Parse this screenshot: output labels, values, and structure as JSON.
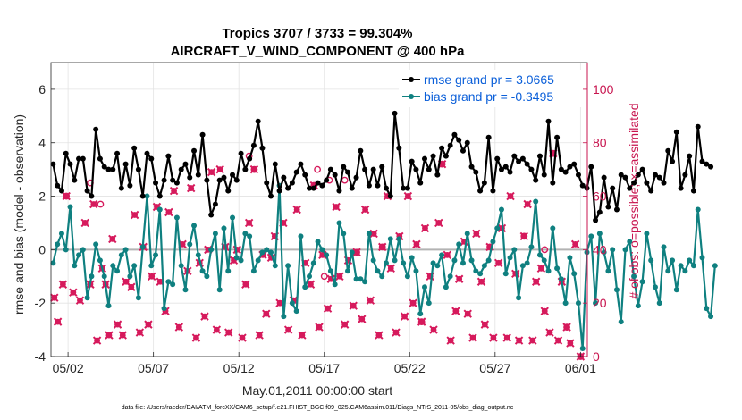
{
  "chart_data": {
    "type": "line",
    "title": "Tropics 3707 / 3733 = 99.304%",
    "subtitle": "AIRCRAFT_V_WIND_COMPONENT @ 400 hPa",
    "xlabel": "May.01,2011 00:00:00 start",
    "ylabel_left": "rmse and bias (model - observation)",
    "ylabel_right": "# of obs: o=possible; ×=assimilated",
    "footer": "data file: /Users/raeder/DAI/ATM_forcXX/CAM6_setup/f.e21.FHIST_BGC.f09_025.CAM6assim.011/Diags_NTrS_2011-05/obs_diag_output.nc",
    "xlim": [
      1,
      32.4
    ],
    "ylim_left": [
      -4,
      7
    ],
    "ylim_right": [
      0,
      110
    ],
    "y_ticks_left": [
      -4,
      -2,
      0,
      2,
      4,
      6
    ],
    "y_ticks_right": [
      0,
      20,
      40,
      60,
      80,
      100
    ],
    "x_ticks": [
      {
        "pos": 2,
        "label": "05/02"
      },
      {
        "pos": 7,
        "label": "05/07"
      },
      {
        "pos": 12,
        "label": "05/12"
      },
      {
        "pos": 17,
        "label": "05/17"
      },
      {
        "pos": 22,
        "label": "05/22"
      },
      {
        "pos": 27,
        "label": "05/27"
      },
      {
        "pos": 32,
        "label": "06/01"
      }
    ],
    "grid": true,
    "legend_position": "top-right",
    "colors": {
      "rmse": "#000000",
      "bias": "#0f8080",
      "obs": "#d61a5c",
      "zero_line": "#b3b3b3",
      "right_axis": "#c8154f"
    },
    "series": [
      {
        "name": "rmse grand pr = 3.0665",
        "axis": "left",
        "x_start": 1.125,
        "x_step": 0.25,
        "values": [
          3.2,
          2.4,
          2.2,
          3.6,
          3.2,
          2.6,
          3.4,
          3.4,
          2.2,
          2.0,
          4.5,
          3.4,
          3.1,
          3.0,
          3.0,
          3.6,
          2.3,
          3.2,
          2.4,
          3.8,
          3.0,
          2.0,
          3.6,
          3.4,
          2.5,
          2.0,
          2.6,
          3.5,
          2.6,
          2.5,
          3.0,
          3.2,
          2.7,
          3.7,
          2.8,
          4.3,
          2.6,
          1.3,
          1.7,
          2.6,
          2.7,
          2.2,
          2.8,
          2.6,
          3.6,
          3.0,
          3.4,
          3.9,
          4.8,
          3.8,
          2.5,
          2.0,
          3.2,
          2.2,
          2.7,
          2.3,
          2.5,
          2.9,
          3.2,
          2.8,
          2.3,
          2.3,
          2.5,
          2.4,
          2.6,
          3.0,
          2.8,
          2.2,
          3.1,
          2.9,
          2.3,
          2.7,
          3.7,
          3.0,
          2.4,
          3.0,
          2.4,
          3.1,
          2.3,
          2.0,
          5.1,
          3.8,
          2.3,
          2.3,
          3.3,
          3.0,
          2.5,
          3.4,
          3.0,
          3.5,
          2.8,
          3.8,
          3.5,
          3.9,
          4.3,
          4.1,
          3.7,
          4.0,
          3.1,
          2.9,
          2.2,
          2.5,
          4.2,
          2.2,
          3.4,
          3.0,
          3.1,
          2.9,
          3.5,
          3.3,
          3.4,
          3.2,
          3.0,
          2.6,
          3.5,
          2.8,
          4.8,
          2.5,
          4.2,
          3.0,
          2.9,
          3.1,
          3.2,
          2.8,
          2.4,
          2.3,
          3.1,
          1.1,
          1.4,
          2.7,
          1.6,
          2.3,
          1.5,
          2.8,
          2.7,
          2.3,
          2.5,
          2.8,
          3.0,
          2.5,
          2.2,
          2.8,
          2.7,
          2.5,
          3.7,
          3.3,
          4.4,
          2.3,
          2.8,
          3.5,
          2.2,
          4.6,
          3.3,
          3.2,
          3.1
        ]
      },
      {
        "name": "bias grand pr = -0.3495",
        "axis": "left",
        "x_start": 1.125,
        "x_step": 0.25,
        "values": [
          -0.5,
          0.2,
          0.6,
          0.0,
          1.6,
          -0.6,
          -0.2,
          0.0,
          -1.8,
          -1.0,
          0.2,
          -0.4,
          -1.0,
          -2.1,
          -0.6,
          -0.8,
          -0.2,
          0.0,
          -1.0,
          -0.6,
          -1.8,
          0.1,
          2.0,
          -0.6,
          -0.2,
          1.5,
          -2.2,
          -1.2,
          -1.3,
          1.2,
          -0.6,
          -1.5,
          0.2,
          0.9,
          -0.2,
          -0.8,
          -1.0,
          0.0,
          0.6,
          -1.5,
          0.8,
          -0.8,
          1.2,
          -0.3,
          -0.4,
          0.6,
          0.5,
          -0.8,
          -0.4,
          -0.1,
          0.0,
          -0.1,
          -0.6,
          2.4,
          -2.5,
          -0.6,
          -2.0,
          -2.3,
          0.5,
          -1.4,
          -1.0,
          -0.5,
          0.3,
          0.0,
          -0.2,
          -0.8,
          -1.3,
          1.0,
          0.6,
          -0.8,
          -0.1,
          -1.1,
          -1.1,
          -1.2,
          0.6,
          -0.4,
          -0.8,
          -1.0,
          -0.5,
          0.4,
          -0.4,
          0.4,
          -0.5,
          -1.0,
          -0.3,
          -0.8,
          -2.4,
          -1.4,
          -2.0,
          -0.5,
          -0.6,
          -0.2,
          -1.4,
          -1.0,
          -0.4,
          0.2,
          -0.5,
          0.6,
          -0.4,
          -0.8,
          -0.9,
          -0.6,
          -0.4,
          0.3,
          0.8,
          1.5,
          -0.9,
          -0.3,
          0.0,
          -1.8,
          -0.6,
          -0.5,
          0.1,
          1.8,
          -0.2,
          -0.4,
          -0.8,
          0.8,
          -0.7,
          -1.1,
          -2.0,
          -0.3,
          -0.9,
          -2.0,
          -3.7,
          -0.1,
          0.5,
          -2.0,
          0.6,
          -0.1,
          -0.8,
          0.0,
          -1.5,
          -2.7,
          0.0,
          0.3,
          -1.0,
          -2.1,
          -1.2,
          0.6,
          -0.4,
          -1.4,
          -2.0,
          0.1,
          -0.8,
          -0.4,
          -1.5,
          -0.6,
          -0.8,
          -0.4,
          -0.6,
          1.5,
          -0.3,
          -2.2,
          -2.5,
          -0.6
        ]
      },
      {
        "name": "assimilated",
        "axis": "right",
        "points": [
          [
            1.2,
            22
          ],
          [
            1.4,
            13
          ],
          [
            1.7,
            27
          ],
          [
            1.9,
            60
          ],
          [
            2.3,
            24
          ],
          [
            2.7,
            21
          ],
          [
            3.0,
            50
          ],
          [
            3.3,
            27
          ],
          [
            3.5,
            57
          ],
          [
            3.7,
            6
          ],
          [
            4.0,
            33
          ],
          [
            4.2,
            27
          ],
          [
            4.4,
            8
          ],
          [
            4.6,
            44
          ],
          [
            4.9,
            12
          ],
          [
            5.2,
            8
          ],
          [
            5.4,
            28
          ],
          [
            5.7,
            26
          ],
          [
            5.9,
            53
          ],
          [
            6.2,
            9
          ],
          [
            6.4,
            41
          ],
          [
            6.7,
            12
          ],
          [
            6.9,
            30
          ],
          [
            7.2,
            56
          ],
          [
            7.4,
            28
          ],
          [
            7.7,
            17
          ],
          [
            7.9,
            54
          ],
          [
            8.2,
            62
          ],
          [
            8.5,
            11
          ],
          [
            8.7,
            42
          ],
          [
            9.0,
            32
          ],
          [
            9.2,
            63
          ],
          [
            9.5,
            7
          ],
          [
            9.7,
            35
          ],
          [
            10.0,
            15
          ],
          [
            10.2,
            40
          ],
          [
            10.4,
            69
          ],
          [
            10.7,
            10
          ],
          [
            10.9,
            70
          ],
          [
            11.2,
            41
          ],
          [
            11.4,
            9
          ],
          [
            11.7,
            36
          ],
          [
            11.9,
            40
          ],
          [
            12.2,
            7
          ],
          [
            12.4,
            27
          ],
          [
            12.6,
            50
          ],
          [
            12.9,
            70
          ],
          [
            13.2,
            8
          ],
          [
            13.4,
            38
          ],
          [
            13.6,
            16
          ],
          [
            13.9,
            37
          ],
          [
            14.1,
            45
          ],
          [
            14.4,
            20
          ],
          [
            14.6,
            50
          ],
          [
            14.9,
            10
          ],
          [
            15.2,
            21
          ],
          [
            15.4,
            55
          ],
          [
            15.7,
            8
          ],
          [
            15.9,
            35
          ],
          [
            16.2,
            27
          ],
          [
            16.4,
            64
          ],
          [
            16.7,
            11
          ],
          [
            16.9,
            38
          ],
          [
            17.2,
            18
          ],
          [
            17.4,
            29
          ],
          [
            17.7,
            56
          ],
          [
            17.9,
            30
          ],
          [
            18.2,
            12
          ],
          [
            18.4,
            36
          ],
          [
            18.7,
            19
          ],
          [
            18.9,
            39
          ],
          [
            19.2,
            14
          ],
          [
            19.4,
            55
          ],
          [
            19.7,
            21
          ],
          [
            19.9,
            46
          ],
          [
            20.2,
            8
          ],
          [
            20.4,
            41
          ],
          [
            20.7,
            60
          ],
          [
            20.9,
            33
          ],
          [
            21.2,
            9
          ],
          [
            21.4,
            45
          ],
          [
            21.7,
            15
          ],
          [
            21.9,
            60
          ],
          [
            22.2,
            20
          ],
          [
            22.4,
            42
          ],
          [
            22.7,
            13
          ],
          [
            22.9,
            48
          ],
          [
            23.2,
            30
          ],
          [
            23.4,
            10
          ],
          [
            23.7,
            50
          ],
          [
            23.9,
            72
          ],
          [
            24.2,
            38
          ],
          [
            24.4,
            6
          ],
          [
            24.7,
            17
          ],
          [
            24.9,
            29
          ],
          [
            25.2,
            43
          ],
          [
            25.4,
            16
          ],
          [
            25.7,
            7
          ],
          [
            25.9,
            46
          ],
          [
            26.2,
            28
          ],
          [
            26.4,
            12
          ],
          [
            26.7,
            41
          ],
          [
            26.9,
            7
          ],
          [
            27.2,
            35
          ],
          [
            27.4,
            48
          ],
          [
            27.7,
            7
          ],
          [
            27.9,
            60
          ],
          [
            28.2,
            31
          ],
          [
            28.4,
            6
          ],
          [
            28.7,
            45
          ],
          [
            28.9,
            57
          ],
          [
            29.2,
            6
          ],
          [
            29.4,
            28
          ],
          [
            29.7,
            33
          ],
          [
            29.9,
            17
          ],
          [
            30.2,
            9
          ],
          [
            30.4,
            76
          ],
          [
            30.7,
            6
          ],
          [
            30.9,
            28
          ],
          [
            31.2,
            11
          ],
          [
            31.4,
            5
          ],
          [
            31.7,
            42
          ],
          [
            32.0,
            0
          ]
        ]
      },
      {
        "name": "possible",
        "axis": "right",
        "points": [
          [
            1.9,
            60
          ],
          [
            3.3,
            65
          ],
          [
            3.9,
            57
          ],
          [
            12.6,
            75
          ],
          [
            12.9,
            70
          ],
          [
            16.4,
            64
          ],
          [
            16.6,
            70
          ],
          [
            17.0,
            30
          ],
          [
            17.3,
            66
          ],
          [
            18.2,
            66
          ],
          [
            18.9,
            39
          ],
          [
            20.4,
            41
          ],
          [
            22.7,
            13
          ],
          [
            23.9,
            72
          ],
          [
            26.7,
            41
          ],
          [
            28.7,
            45
          ],
          [
            29.9,
            40
          ],
          [
            30.4,
            76
          ],
          [
            31.2,
            11
          ],
          [
            32.0,
            0
          ]
        ]
      }
    ]
  }
}
